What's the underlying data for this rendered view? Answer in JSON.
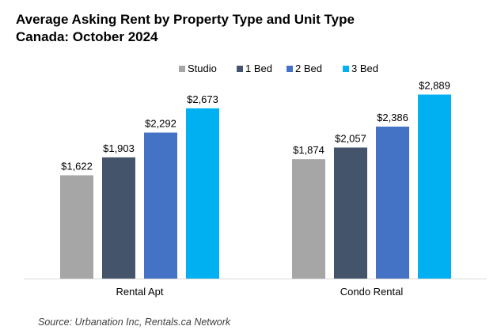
{
  "title": "Average Asking Rent by Property Type and Unit Type",
  "subtitle": "Canada: October 2024",
  "source": "Source: Urbanation Inc, Rentals.ca Network",
  "chart_data": {
    "type": "bar",
    "categories": [
      "Rental Apt",
      "Condo Rental"
    ],
    "series": [
      {
        "name": "Studio",
        "color": "#a6a6a6",
        "values": [
          1622,
          1874
        ],
        "labels": [
          "$1,622",
          "$1,874"
        ]
      },
      {
        "name": "1 Bed",
        "color": "#44546a",
        "values": [
          1903,
          2057
        ],
        "labels": [
          "$1,903",
          "$2,057"
        ]
      },
      {
        "name": "2 Bed",
        "color": "#4472c4",
        "values": [
          2292,
          2386
        ],
        "labels": [
          "$2,292",
          "$2,386"
        ]
      },
      {
        "name": "3 Bed",
        "color": "#00b0f0",
        "values": [
          2673,
          2889
        ],
        "labels": [
          "$2,673",
          "$2,889"
        ]
      }
    ],
    "ylim": [
      0,
      3200
    ],
    "grid": false,
    "legend": "top-center",
    "xlabel": "",
    "ylabel": ""
  }
}
